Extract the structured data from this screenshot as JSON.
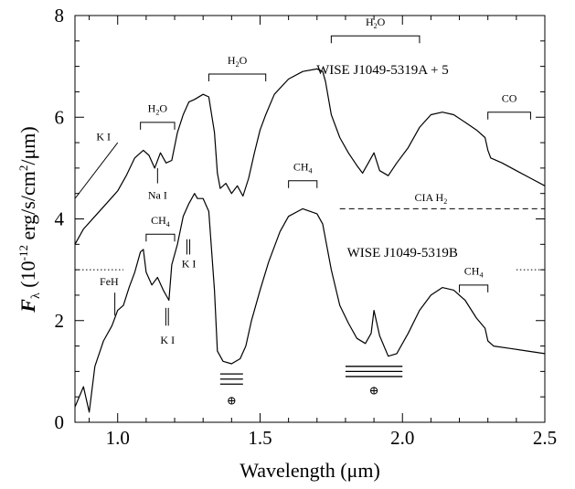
{
  "chart_data": {
    "type": "line",
    "xlabel_parts": [
      "Wavelength (",
      "μ",
      "m)"
    ],
    "ylabel_parts": [
      "F",
      "λ",
      " (10",
      "-12",
      " erg/s/cm",
      "2",
      "/μm)"
    ],
    "xlim": [
      0.85,
      2.5
    ],
    "ylim": [
      0,
      8
    ],
    "x_ticks": [
      1.0,
      1.5,
      2.0,
      2.5
    ],
    "x_tick_labels": [
      "1.0",
      "1.5",
      "2.0",
      "2.5"
    ],
    "y_ticks": [
      0,
      2,
      4,
      6,
      8
    ],
    "y_tick_labels": [
      "0",
      "2",
      "4",
      "6",
      "8"
    ],
    "series": [
      {
        "name": "WISE J1049-5319A + 5",
        "points": [
          [
            0.85,
            3.5
          ],
          [
            0.88,
            3.8
          ],
          [
            0.92,
            4.05
          ],
          [
            0.96,
            4.3
          ],
          [
            1.0,
            4.55
          ],
          [
            1.03,
            4.85
          ],
          [
            1.06,
            5.2
          ],
          [
            1.09,
            5.35
          ],
          [
            1.11,
            5.25
          ],
          [
            1.13,
            5.0
          ],
          [
            1.15,
            5.3
          ],
          [
            1.17,
            5.1
          ],
          [
            1.19,
            5.15
          ],
          [
            1.21,
            5.7
          ],
          [
            1.23,
            6.05
          ],
          [
            1.25,
            6.3
          ],
          [
            1.27,
            6.35
          ],
          [
            1.3,
            6.45
          ],
          [
            1.32,
            6.4
          ],
          [
            1.34,
            5.7
          ],
          [
            1.35,
            4.9
          ],
          [
            1.36,
            4.6
          ],
          [
            1.38,
            4.7
          ],
          [
            1.4,
            4.5
          ],
          [
            1.42,
            4.65
          ],
          [
            1.44,
            4.45
          ],
          [
            1.46,
            4.8
          ],
          [
            1.48,
            5.3
          ],
          [
            1.5,
            5.75
          ],
          [
            1.52,
            6.05
          ],
          [
            1.55,
            6.45
          ],
          [
            1.6,
            6.75
          ],
          [
            1.65,
            6.9
          ],
          [
            1.7,
            6.95
          ],
          [
            1.72,
            6.9
          ],
          [
            1.73,
            6.7
          ],
          [
            1.75,
            6.05
          ],
          [
            1.78,
            5.6
          ],
          [
            1.81,
            5.3
          ],
          [
            1.84,
            5.05
          ],
          [
            1.86,
            4.9
          ],
          [
            1.88,
            5.1
          ],
          [
            1.9,
            5.3
          ],
          [
            1.92,
            4.95
          ],
          [
            1.95,
            4.85
          ],
          [
            1.98,
            5.1
          ],
          [
            2.02,
            5.4
          ],
          [
            2.06,
            5.8
          ],
          [
            2.1,
            6.05
          ],
          [
            2.14,
            6.1
          ],
          [
            2.18,
            6.05
          ],
          [
            2.22,
            5.9
          ],
          [
            2.26,
            5.75
          ],
          [
            2.29,
            5.6
          ],
          [
            2.3,
            5.35
          ],
          [
            2.31,
            5.2
          ],
          [
            2.35,
            5.1
          ],
          [
            2.4,
            4.95
          ],
          [
            2.45,
            4.8
          ],
          [
            2.5,
            4.65
          ]
        ],
        "color": "#000000"
      },
      {
        "name": "WISE J1049-5319B",
        "points": [
          [
            0.85,
            0.3
          ],
          [
            0.88,
            0.7
          ],
          [
            0.9,
            0.2
          ],
          [
            0.92,
            1.1
          ],
          [
            0.95,
            1.6
          ],
          [
            0.98,
            1.9
          ],
          [
            1.0,
            2.2
          ],
          [
            1.02,
            2.3
          ],
          [
            1.04,
            2.65
          ],
          [
            1.06,
            2.95
          ],
          [
            1.08,
            3.35
          ],
          [
            1.09,
            3.4
          ],
          [
            1.1,
            2.95
          ],
          [
            1.12,
            2.7
          ],
          [
            1.14,
            2.85
          ],
          [
            1.16,
            2.6
          ],
          [
            1.18,
            2.4
          ],
          [
            1.19,
            3.1
          ],
          [
            1.21,
            3.5
          ],
          [
            1.23,
            4.05
          ],
          [
            1.25,
            4.3
          ],
          [
            1.27,
            4.5
          ],
          [
            1.28,
            4.4
          ],
          [
            1.3,
            4.4
          ],
          [
            1.32,
            4.15
          ],
          [
            1.34,
            2.6
          ],
          [
            1.35,
            1.4
          ],
          [
            1.37,
            1.2
          ],
          [
            1.4,
            1.15
          ],
          [
            1.43,
            1.25
          ],
          [
            1.45,
            1.5
          ],
          [
            1.47,
            2.0
          ],
          [
            1.5,
            2.6
          ],
          [
            1.53,
            3.15
          ],
          [
            1.57,
            3.75
          ],
          [
            1.6,
            4.05
          ],
          [
            1.65,
            4.2
          ],
          [
            1.7,
            4.1
          ],
          [
            1.72,
            3.9
          ],
          [
            1.75,
            3.0
          ],
          [
            1.78,
            2.3
          ],
          [
            1.81,
            1.95
          ],
          [
            1.84,
            1.65
          ],
          [
            1.87,
            1.55
          ],
          [
            1.89,
            1.75
          ],
          [
            1.9,
            2.2
          ],
          [
            1.92,
            1.7
          ],
          [
            1.95,
            1.3
          ],
          [
            1.98,
            1.35
          ],
          [
            2.02,
            1.75
          ],
          [
            2.06,
            2.2
          ],
          [
            2.1,
            2.5
          ],
          [
            2.14,
            2.65
          ],
          [
            2.18,
            2.6
          ],
          [
            2.22,
            2.4
          ],
          [
            2.26,
            2.05
          ],
          [
            2.29,
            1.85
          ],
          [
            2.3,
            1.6
          ],
          [
            2.32,
            1.5
          ],
          [
            2.38,
            1.45
          ],
          [
            2.44,
            1.4
          ],
          [
            2.5,
            1.35
          ]
        ],
        "color": "#000000"
      }
    ],
    "object_labels": [
      {
        "text": "WISE J1049-5319A + 5",
        "x": 1.93,
        "y": 6.85
      },
      {
        "text": "WISE J1049-5319B",
        "x": 2.0,
        "y": 3.25
      }
    ],
    "annotations": [
      {
        "kind": "bracket",
        "main": "H",
        "sub": "2",
        "tail": "O",
        "x1": 1.08,
        "x2": 1.2,
        "y": 5.9,
        "label_y": 6.1
      },
      {
        "kind": "bracket",
        "main": "H",
        "sub": "2",
        "tail": "O",
        "x1": 1.32,
        "x2": 1.52,
        "y": 6.85,
        "label_y": 7.05
      },
      {
        "kind": "bracket",
        "main": "H",
        "sub": "2",
        "tail": "O",
        "x1": 1.75,
        "x2": 2.06,
        "y": 7.6,
        "label_y": 7.8
      },
      {
        "kind": "bracket",
        "main": "CO",
        "sub": "",
        "tail": "",
        "x1": 2.3,
        "x2": 2.45,
        "y": 6.1,
        "label_y": 6.3
      },
      {
        "kind": "bracket",
        "main": "CH",
        "sub": "4",
        "tail": "",
        "x1": 1.1,
        "x2": 1.2,
        "y": 3.7,
        "label_y": 3.9
      },
      {
        "kind": "bracket",
        "main": "CH",
        "sub": "4",
        "tail": "",
        "x1": 1.6,
        "x2": 1.7,
        "y": 4.75,
        "label_y": 4.95
      },
      {
        "kind": "bracket",
        "main": "CH",
        "sub": "4",
        "tail": "",
        "x1": 2.2,
        "x2": 2.3,
        "y": 2.7,
        "label_y": 2.9
      },
      {
        "kind": "tick",
        "main": "Na I",
        "sub": "",
        "tail": "",
        "x": 1.14,
        "y1": 5.0,
        "y2": 4.7,
        "label_y": 4.4
      },
      {
        "kind": "ticks",
        "main": "K I",
        "sub": "",
        "tail": "",
        "xs": [
          1.243,
          1.253
        ],
        "y1": 3.6,
        "y2": 3.3,
        "label_x": 1.25,
        "label_y": 3.05
      },
      {
        "kind": "ticks",
        "main": "K I",
        "sub": "",
        "tail": "",
        "xs": [
          1.169,
          1.178
        ],
        "y1": 2.25,
        "y2": 1.9,
        "label_x": 1.175,
        "label_y": 1.55
      },
      {
        "kind": "tick",
        "main": "FeH",
        "sub": "",
        "tail": "",
        "x": 0.99,
        "y1": 2.1,
        "y2": 2.55,
        "label_y": 2.7,
        "label_x": 0.97
      },
      {
        "kind": "slant",
        "main": "K I",
        "sub": "",
        "tail": "",
        "x1": 0.85,
        "x2": 1.0,
        "y1": 4.4,
        "y2": 5.5,
        "label_x": 0.95,
        "label_y": 5.55
      },
      {
        "kind": "dashed",
        "main": "CIA H",
        "sub": "2",
        "tail": "",
        "x1": 1.78,
        "x2": 2.5,
        "y": 4.2,
        "label_x": 2.1,
        "label_y": 4.35
      },
      {
        "kind": "dotted",
        "main": "",
        "sub": "",
        "tail": "",
        "x1": 0.85,
        "x2": 1.02,
        "y": 3.0
      },
      {
        "kind": "dotted",
        "main": "",
        "sub": "",
        "tail": "",
        "x1": 2.4,
        "x2": 2.5,
        "y": 3.0
      },
      {
        "kind": "telluric",
        "main": "⊕",
        "sub": "",
        "tail": "",
        "x1": 1.36,
        "x2": 1.44,
        "ys": [
          0.95,
          0.85,
          0.75
        ],
        "label_x": 1.4,
        "label_y": 0.35
      },
      {
        "kind": "telluric",
        "main": "⊕",
        "sub": "",
        "tail": "",
        "x1": 1.8,
        "x2": 2.0,
        "ys": [
          1.1,
          1.0,
          0.9
        ],
        "label_x": 1.9,
        "label_y": 0.55
      }
    ]
  }
}
